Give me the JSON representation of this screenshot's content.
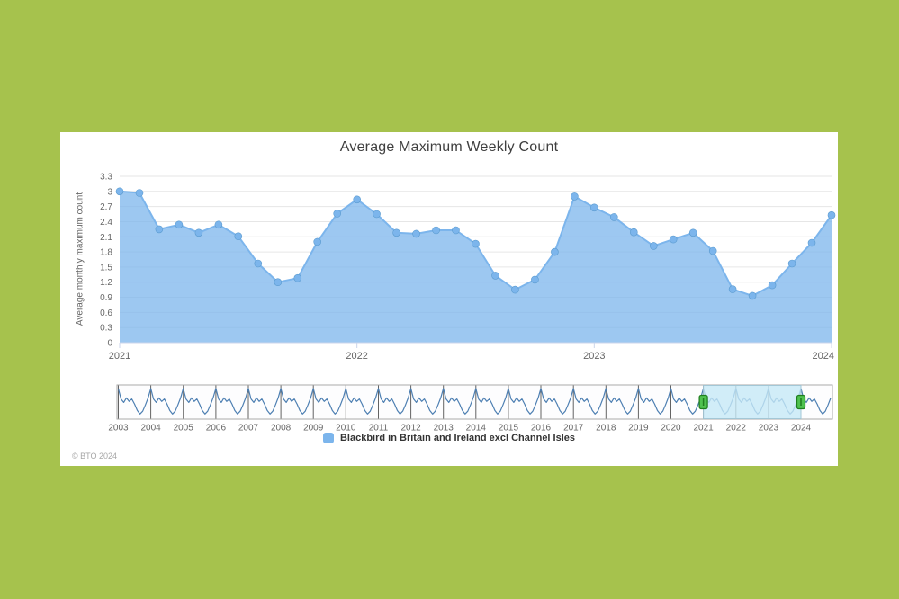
{
  "page": {
    "copyright": "© BTO 2024"
  },
  "chart": {
    "title": "Average Maximum Weekly Count",
    "y_axis_title": "Average monthly maximum count",
    "legend": {
      "label": "Blackbird in Britain and Ireland excl Channel Isles",
      "swatch_color": "#7cb5ec"
    }
  },
  "colors": {
    "page_background": "#a6c24d",
    "card_background": "#ffffff",
    "title_text": "#3f3f3f",
    "axis_label": "#666666",
    "gridline": "#e6e6e6",
    "axis_line": "#ccd6eb",
    "series": "#7cb5ec",
    "navigator_line": "#4d7fb2",
    "navigator_outline": "#aaaaaa",
    "navigator_background": "#fdfdfe",
    "navigator_year_line": "#3c3c3c",
    "navigator_mask": "rgba(198,233,246,0.8)",
    "navigator_mask_border": "#a3c7d6",
    "handle_fill": "#4fc24f",
    "handle_border": "#1f7e1f",
    "legend_text": "#333333",
    "copyright_text": "#a6a6a6"
  },
  "chart_data": {
    "type": "area",
    "title": "Average Maximum Weekly Count",
    "ylabel": "Average monthly maximum count",
    "ylim": [
      0,
      3.3
    ],
    "y_ticks": [
      0,
      0.3,
      0.6,
      0.9,
      1.2,
      1.5,
      1.8,
      2.1,
      2.4,
      2.7,
      3,
      3.3
    ],
    "grid": "horizontal",
    "x_start": "2021-01",
    "x_end": "2024-01",
    "x_interval": "monthly",
    "x_year_labels": [
      "2021",
      "2022",
      "2023",
      "2024"
    ],
    "legend_position": "bottom",
    "series": [
      {
        "name": "Blackbird in Britain and Ireland excl Channel Isles",
        "color": "#7cb5ec",
        "fill_opacity": 0.75,
        "marker_radius": 4,
        "values": [
          3.0,
          2.97,
          2.25,
          2.34,
          2.18,
          2.34,
          2.11,
          1.57,
          1.2,
          1.28,
          2.0,
          2.56,
          2.84,
          2.55,
          2.18,
          2.16,
          2.23,
          2.23,
          1.96,
          1.33,
          1.05,
          1.25,
          1.8,
          2.9,
          2.68,
          2.49,
          2.19,
          1.92,
          2.05,
          2.18,
          1.82,
          1.06,
          0.93,
          1.14,
          1.57,
          1.98,
          2.53
        ]
      }
    ],
    "navigator": {
      "year_labels": [
        "2003",
        "2004",
        "2005",
        "2006",
        "2007",
        "2008",
        "2009",
        "2010",
        "2011",
        "2012",
        "2013",
        "2014",
        "2015",
        "2016",
        "2017",
        "2018",
        "2019",
        "2020",
        "2021",
        "2022",
        "2023",
        "2024"
      ],
      "selected_range": [
        "2021-01",
        "2024-01"
      ],
      "seasonal_pattern_note": "thumbnail of full 2003-2024 series: repeating annual cycle with winter (Jan) peaks and late-summer troughs",
      "seasonal_pattern": [
        0.85,
        0.55,
        0.45,
        0.58,
        0.48,
        0.55,
        0.4,
        0.22,
        0.12,
        0.2,
        0.38,
        0.58
      ]
    }
  }
}
